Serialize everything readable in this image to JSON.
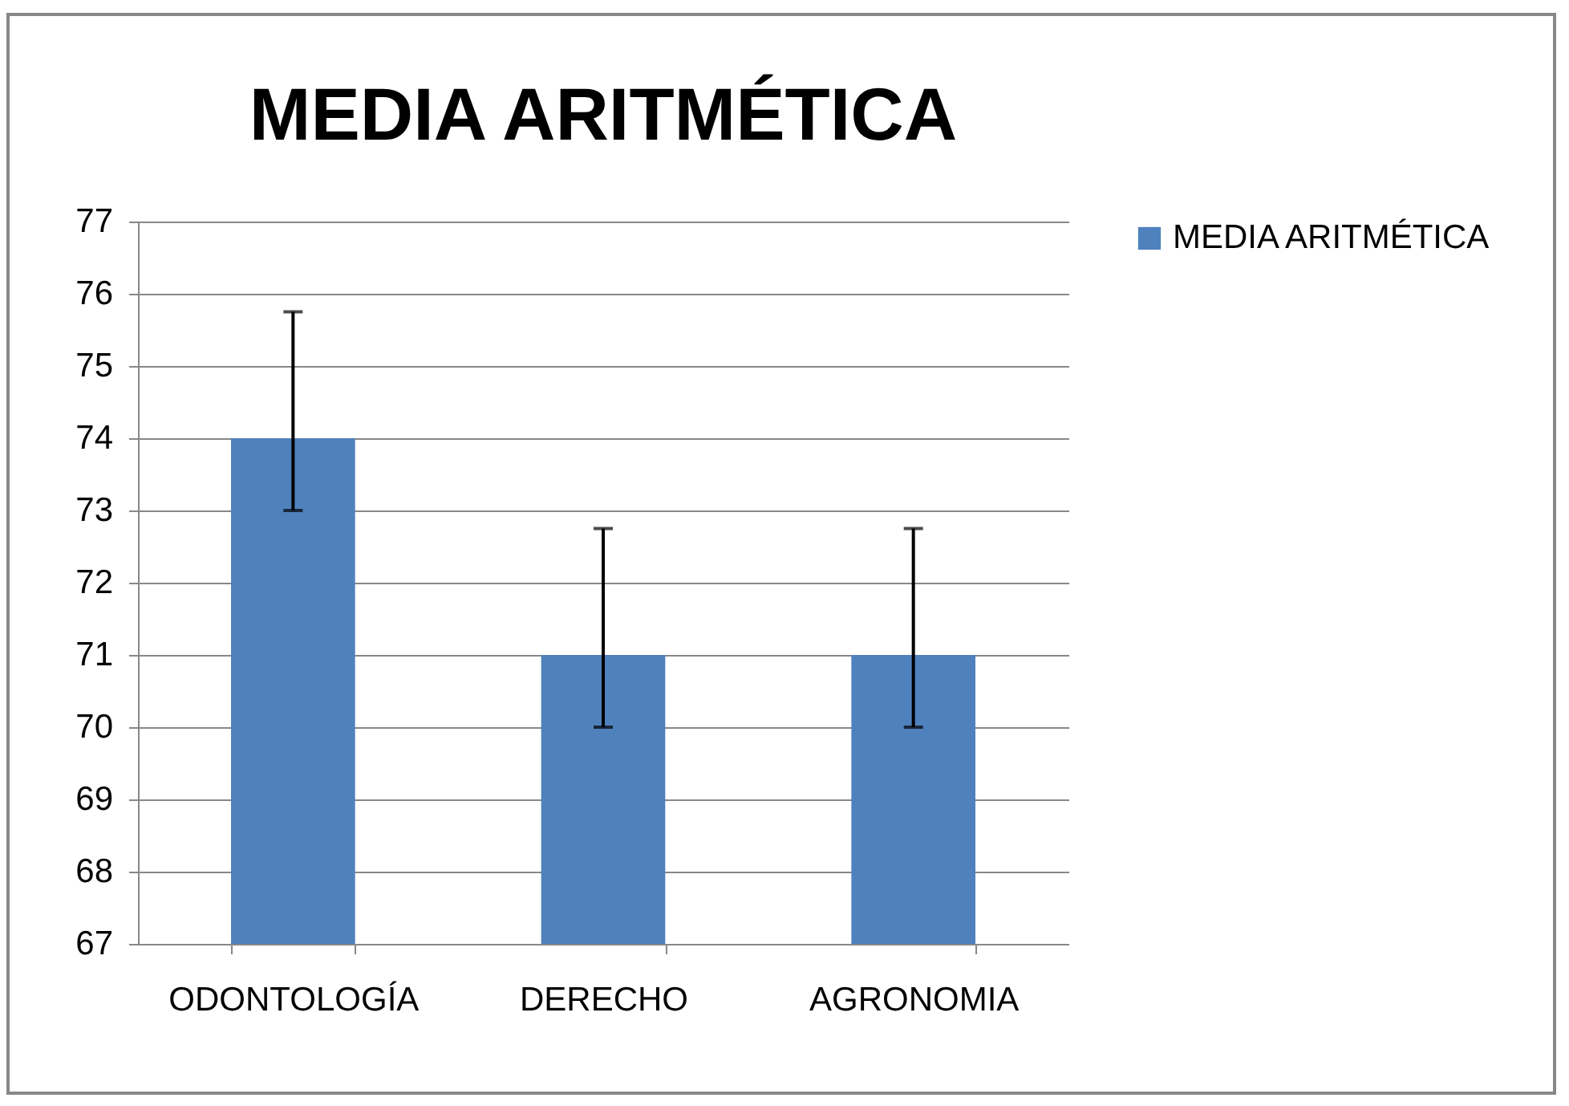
{
  "chart_data": {
    "type": "bar",
    "title": "MEDIA ARITMÉTICA",
    "categories": [
      "ODONTOLOGÍA",
      "DERECHO",
      "AGRONOMIA"
    ],
    "series": [
      {
        "name": "MEDIA ARITMÉTICA",
        "color": "#4f81bd",
        "values": [
          74,
          71,
          71
        ],
        "errors": [
          [
            73,
            75.75
          ],
          [
            70,
            72.75
          ],
          [
            70,
            72.75
          ]
        ]
      }
    ],
    "ylim": [
      67,
      77
    ],
    "yticks": [
      67,
      68,
      69,
      70,
      71,
      72,
      73,
      74,
      75,
      76,
      77
    ],
    "grid": "y",
    "legend": "right"
  }
}
